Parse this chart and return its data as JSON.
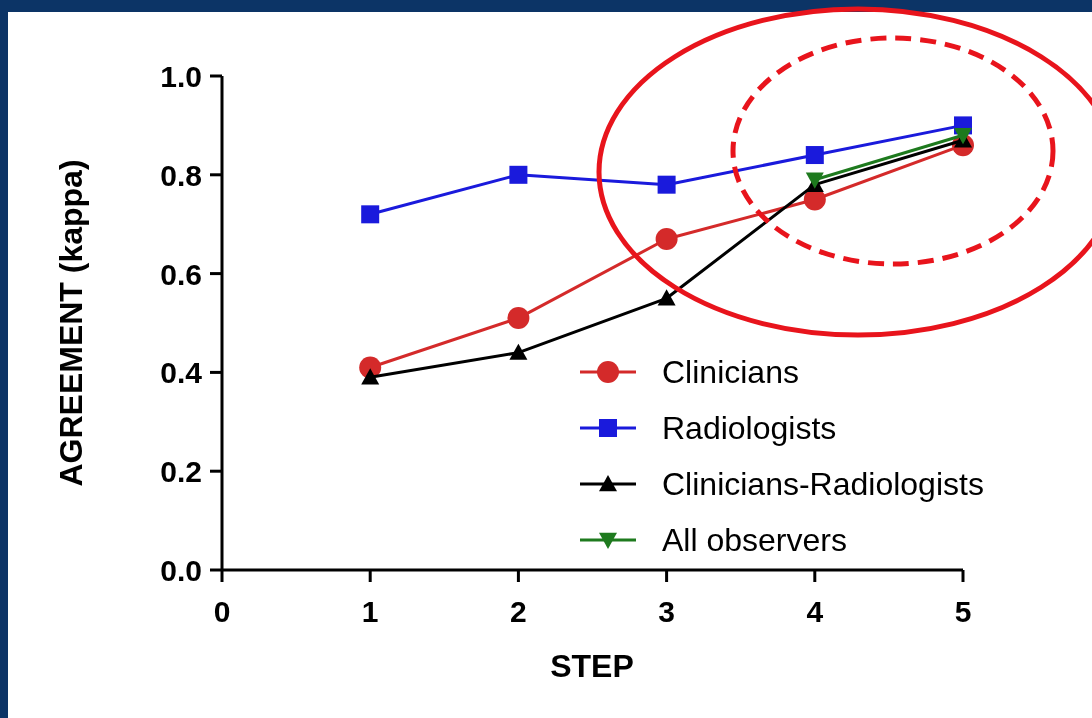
{
  "chart_data": {
    "type": "line",
    "xlabel": "STEP",
    "ylabel": "AGREEMENT (kappa)",
    "xlim": [
      0,
      5
    ],
    "xticks": [
      0,
      1,
      2,
      3,
      4,
      5
    ],
    "ylim": [
      0,
      1
    ],
    "yticks": [
      {
        "value": 0,
        "label": "0.0"
      },
      {
        "value": 0.2,
        "label": "0.2"
      },
      {
        "value": 0.4,
        "label": "0.4"
      },
      {
        "value": 0.6,
        "label": "0.6"
      },
      {
        "value": 0.8,
        "label": "0.8"
      },
      {
        "value": 1,
        "label": "1.0"
      }
    ],
    "legend": "bottom right",
    "grid": false,
    "series": [
      {
        "name": "Clinicians",
        "color": "#d42a2a",
        "marker": "circle",
        "x": [
          1,
          2,
          3,
          4,
          5
        ],
        "values": [
          0.41,
          0.51,
          0.67,
          0.75,
          0.86
        ]
      },
      {
        "name": "Radiologists",
        "color": "#1a1adc",
        "marker": "square",
        "x": [
          1,
          2,
          3,
          4,
          5
        ],
        "values": [
          0.72,
          0.8,
          0.78,
          0.84,
          0.9
        ]
      },
      {
        "name": "Clinicians-Radiologists",
        "color": "#000000",
        "marker": "triangle",
        "x": [
          1,
          2,
          3,
          4,
          5
        ],
        "values": [
          0.39,
          0.44,
          0.55,
          0.78,
          0.87
        ]
      },
      {
        "name": "All observers",
        "color": "#1e7a1e",
        "marker": "triangle-down",
        "x": [
          4,
          5
        ],
        "values": [
          0.79,
          0.88
        ]
      }
    ]
  }
}
